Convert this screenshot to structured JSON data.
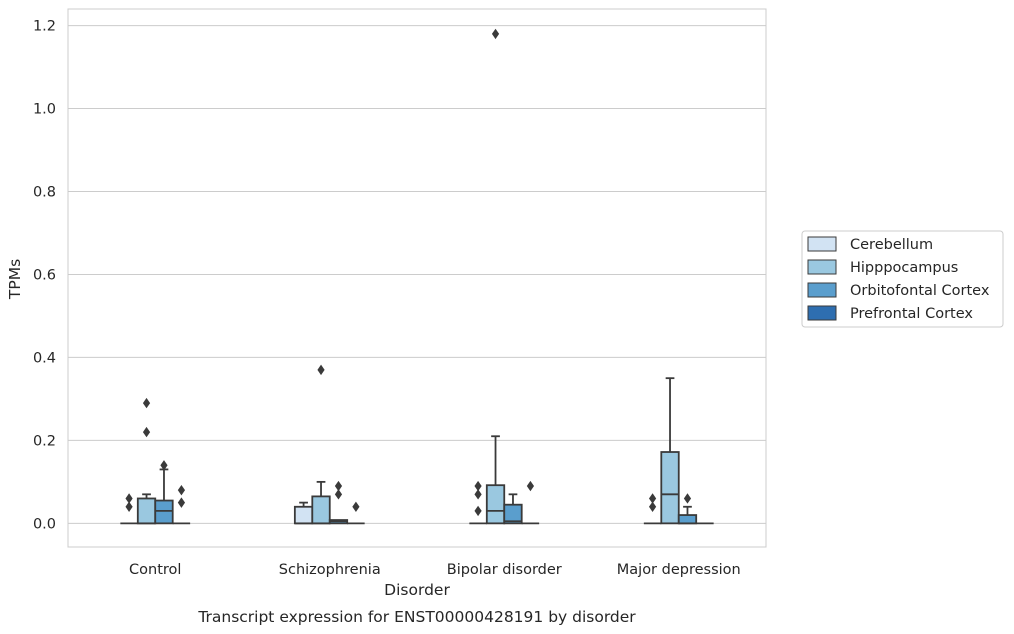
{
  "chart_data": {
    "type": "box",
    "caption": "Transcript expression for ENST00000428191 by disorder",
    "xlabel": "Disorder",
    "ylabel": "TPMs",
    "ylim": [
      -0.057,
      1.24
    ],
    "yticks": [
      0.0,
      0.2,
      0.4,
      0.6,
      0.8,
      1.0,
      1.2
    ],
    "ytick_labels": [
      "0.0",
      "0.2",
      "0.4",
      "0.6",
      "0.8",
      "1.0",
      "1.2"
    ],
    "grid": "horizontal",
    "legend_position": "right",
    "categories": [
      "Control",
      "Schizophrenia",
      "Bipolar disorder",
      "Major depression"
    ],
    "series": [
      {
        "name": "Cerebellum",
        "color": "#d2e3f3",
        "boxes": [
          {
            "q1": 0.0,
            "median": 0.0,
            "q3": 0.0,
            "whisker_low": 0.0,
            "whisker_high": 0.0,
            "outliers": [
              0.04,
              0.06
            ]
          },
          {
            "q1": 0.0,
            "median": 0.0,
            "q3": 0.04,
            "whisker_low": 0.0,
            "whisker_high": 0.05,
            "outliers": []
          },
          {
            "q1": 0.0,
            "median": 0.0,
            "q3": 0.0,
            "whisker_low": 0.0,
            "whisker_high": 0.0,
            "outliers": [
              0.03,
              0.07,
              0.09
            ]
          },
          {
            "q1": 0.0,
            "median": 0.0,
            "q3": 0.0,
            "whisker_low": 0.0,
            "whisker_high": 0.0,
            "outliers": [
              0.04,
              0.06
            ]
          }
        ]
      },
      {
        "name": "Hipppocampus",
        "color": "#9ac8e0",
        "boxes": [
          {
            "q1": 0.0,
            "median": 0.0,
            "q3": 0.06,
            "whisker_low": 0.0,
            "whisker_high": 0.07,
            "outliers": [
              0.22,
              0.29
            ]
          },
          {
            "q1": 0.0,
            "median": 0.0,
            "q3": 0.065,
            "whisker_low": 0.0,
            "whisker_high": 0.1,
            "outliers": [
              0.37
            ]
          },
          {
            "q1": 0.0,
            "median": 0.03,
            "q3": 0.092,
            "whisker_low": 0.0,
            "whisker_high": 0.21,
            "outliers": [
              1.18
            ]
          },
          {
            "q1": 0.0,
            "median": 0.07,
            "q3": 0.172,
            "whisker_low": 0.0,
            "whisker_high": 0.35,
            "outliers": []
          }
        ]
      },
      {
        "name": "Orbitofontal Cortex",
        "color": "#5a9ecd",
        "boxes": [
          {
            "q1": 0.0,
            "median": 0.03,
            "q3": 0.055,
            "whisker_low": 0.0,
            "whisker_high": 0.13,
            "outliers": [
              0.14
            ]
          },
          {
            "q1": 0.0,
            "median": 0.005,
            "q3": 0.008,
            "whisker_low": 0.0,
            "whisker_high": 0.008,
            "outliers": [
              0.07,
              0.09
            ]
          },
          {
            "q1": 0.0,
            "median": 0.005,
            "q3": 0.045,
            "whisker_low": 0.0,
            "whisker_high": 0.07,
            "outliers": []
          },
          {
            "q1": 0.0,
            "median": 0.0,
            "q3": 0.02,
            "whisker_low": 0.0,
            "whisker_high": 0.04,
            "outliers": [
              0.06
            ]
          }
        ]
      },
      {
        "name": "Prefrontal Cortex",
        "color": "#2e6eb0",
        "boxes": [
          {
            "q1": 0.0,
            "median": 0.0,
            "q3": 0.0,
            "whisker_low": 0.0,
            "whisker_high": 0.0,
            "outliers": [
              0.05,
              0.08
            ]
          },
          {
            "q1": 0.0,
            "median": 0.0,
            "q3": 0.0,
            "whisker_low": 0.0,
            "whisker_high": 0.0,
            "outliers": [
              0.04
            ]
          },
          {
            "q1": 0.0,
            "median": 0.0,
            "q3": 0.0,
            "whisker_low": 0.0,
            "whisker_high": 0.0,
            "outliers": [
              0.09
            ]
          },
          {
            "q1": 0.0,
            "median": 0.0,
            "q3": 0.0,
            "whisker_low": 0.0,
            "whisker_high": 0.0,
            "outliers": []
          }
        ]
      }
    ]
  },
  "colors": {
    "grid": "#cccccc",
    "frame": "#cccccc",
    "box_edge": "#3a3a3a"
  }
}
